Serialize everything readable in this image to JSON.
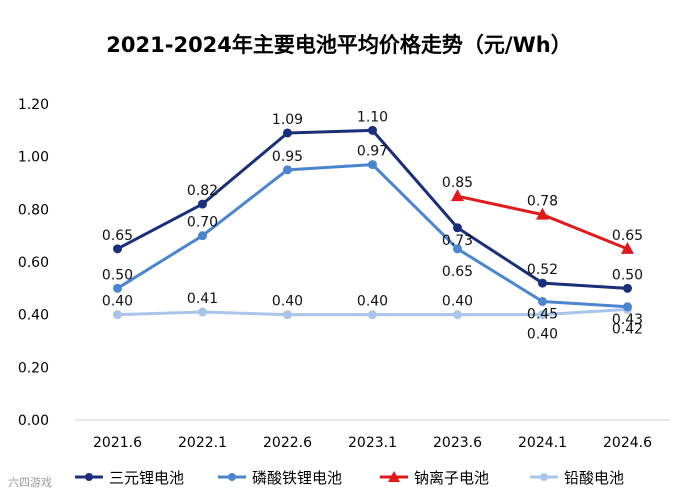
{
  "watermark": {
    "text": "六四游戏"
  },
  "chart_data": {
    "type": "line",
    "title": "2021-2024年主要电池平均价格走势（元/Wh）",
    "xlabel": "",
    "ylabel": "",
    "categories": [
      "2021.6",
      "2022.1",
      "2022.6",
      "2023.1",
      "2023.6",
      "2024.1",
      "2024.6"
    ],
    "ylim": [
      0,
      1.2
    ],
    "yticks": [
      "0.00",
      "0.20",
      "0.40",
      "0.60",
      "0.80",
      "1.00",
      "1.20"
    ],
    "grid": false,
    "legend": "bottom",
    "series": [
      {
        "name": "三元锂电池",
        "color": "#1a2f7a",
        "marker": "circle",
        "values": [
          0.65,
          0.82,
          1.09,
          1.1,
          0.73,
          0.52,
          0.5
        ],
        "labels": [
          "0.65",
          "0.82",
          "1.09",
          "1.10",
          "0.73",
          "0.52",
          "0.50"
        ]
      },
      {
        "name": "磷酸铁锂电池",
        "color": "#4a86cf",
        "marker": "circle",
        "values": [
          0.5,
          0.7,
          0.95,
          0.97,
          0.65,
          0.45,
          0.43
        ],
        "labels": [
          "0.50",
          "0.70",
          "0.95",
          "0.97",
          "0.65",
          "0.45",
          "0.43"
        ]
      },
      {
        "name": "钠离子电池",
        "color": "#e0191b",
        "marker": "triangle",
        "values": [
          null,
          null,
          null,
          null,
          0.85,
          0.78,
          0.65
        ],
        "labels": [
          null,
          null,
          null,
          null,
          "0.85",
          "0.78",
          "0.65"
        ]
      },
      {
        "name": "铅酸电池",
        "color": "#a9c6ea",
        "marker": "circle",
        "values": [
          0.4,
          0.41,
          0.4,
          0.4,
          0.4,
          0.4,
          0.42
        ],
        "labels": [
          "0.40",
          "0.41",
          "0.40",
          "0.40",
          "0.40",
          "0.40",
          "0.42"
        ]
      }
    ]
  }
}
